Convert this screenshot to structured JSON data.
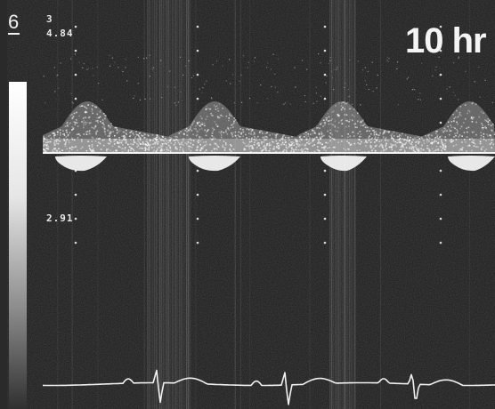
{
  "display": {
    "panel_number": "6",
    "scale_top": "3",
    "scale_top_value": "4.84",
    "scale_lower": "2.91",
    "time_label": "10 hr"
  },
  "colors": {
    "background": "#1a1a1a",
    "signal": "#f0f0f0",
    "grayscale_bar": "#ffffff"
  }
}
